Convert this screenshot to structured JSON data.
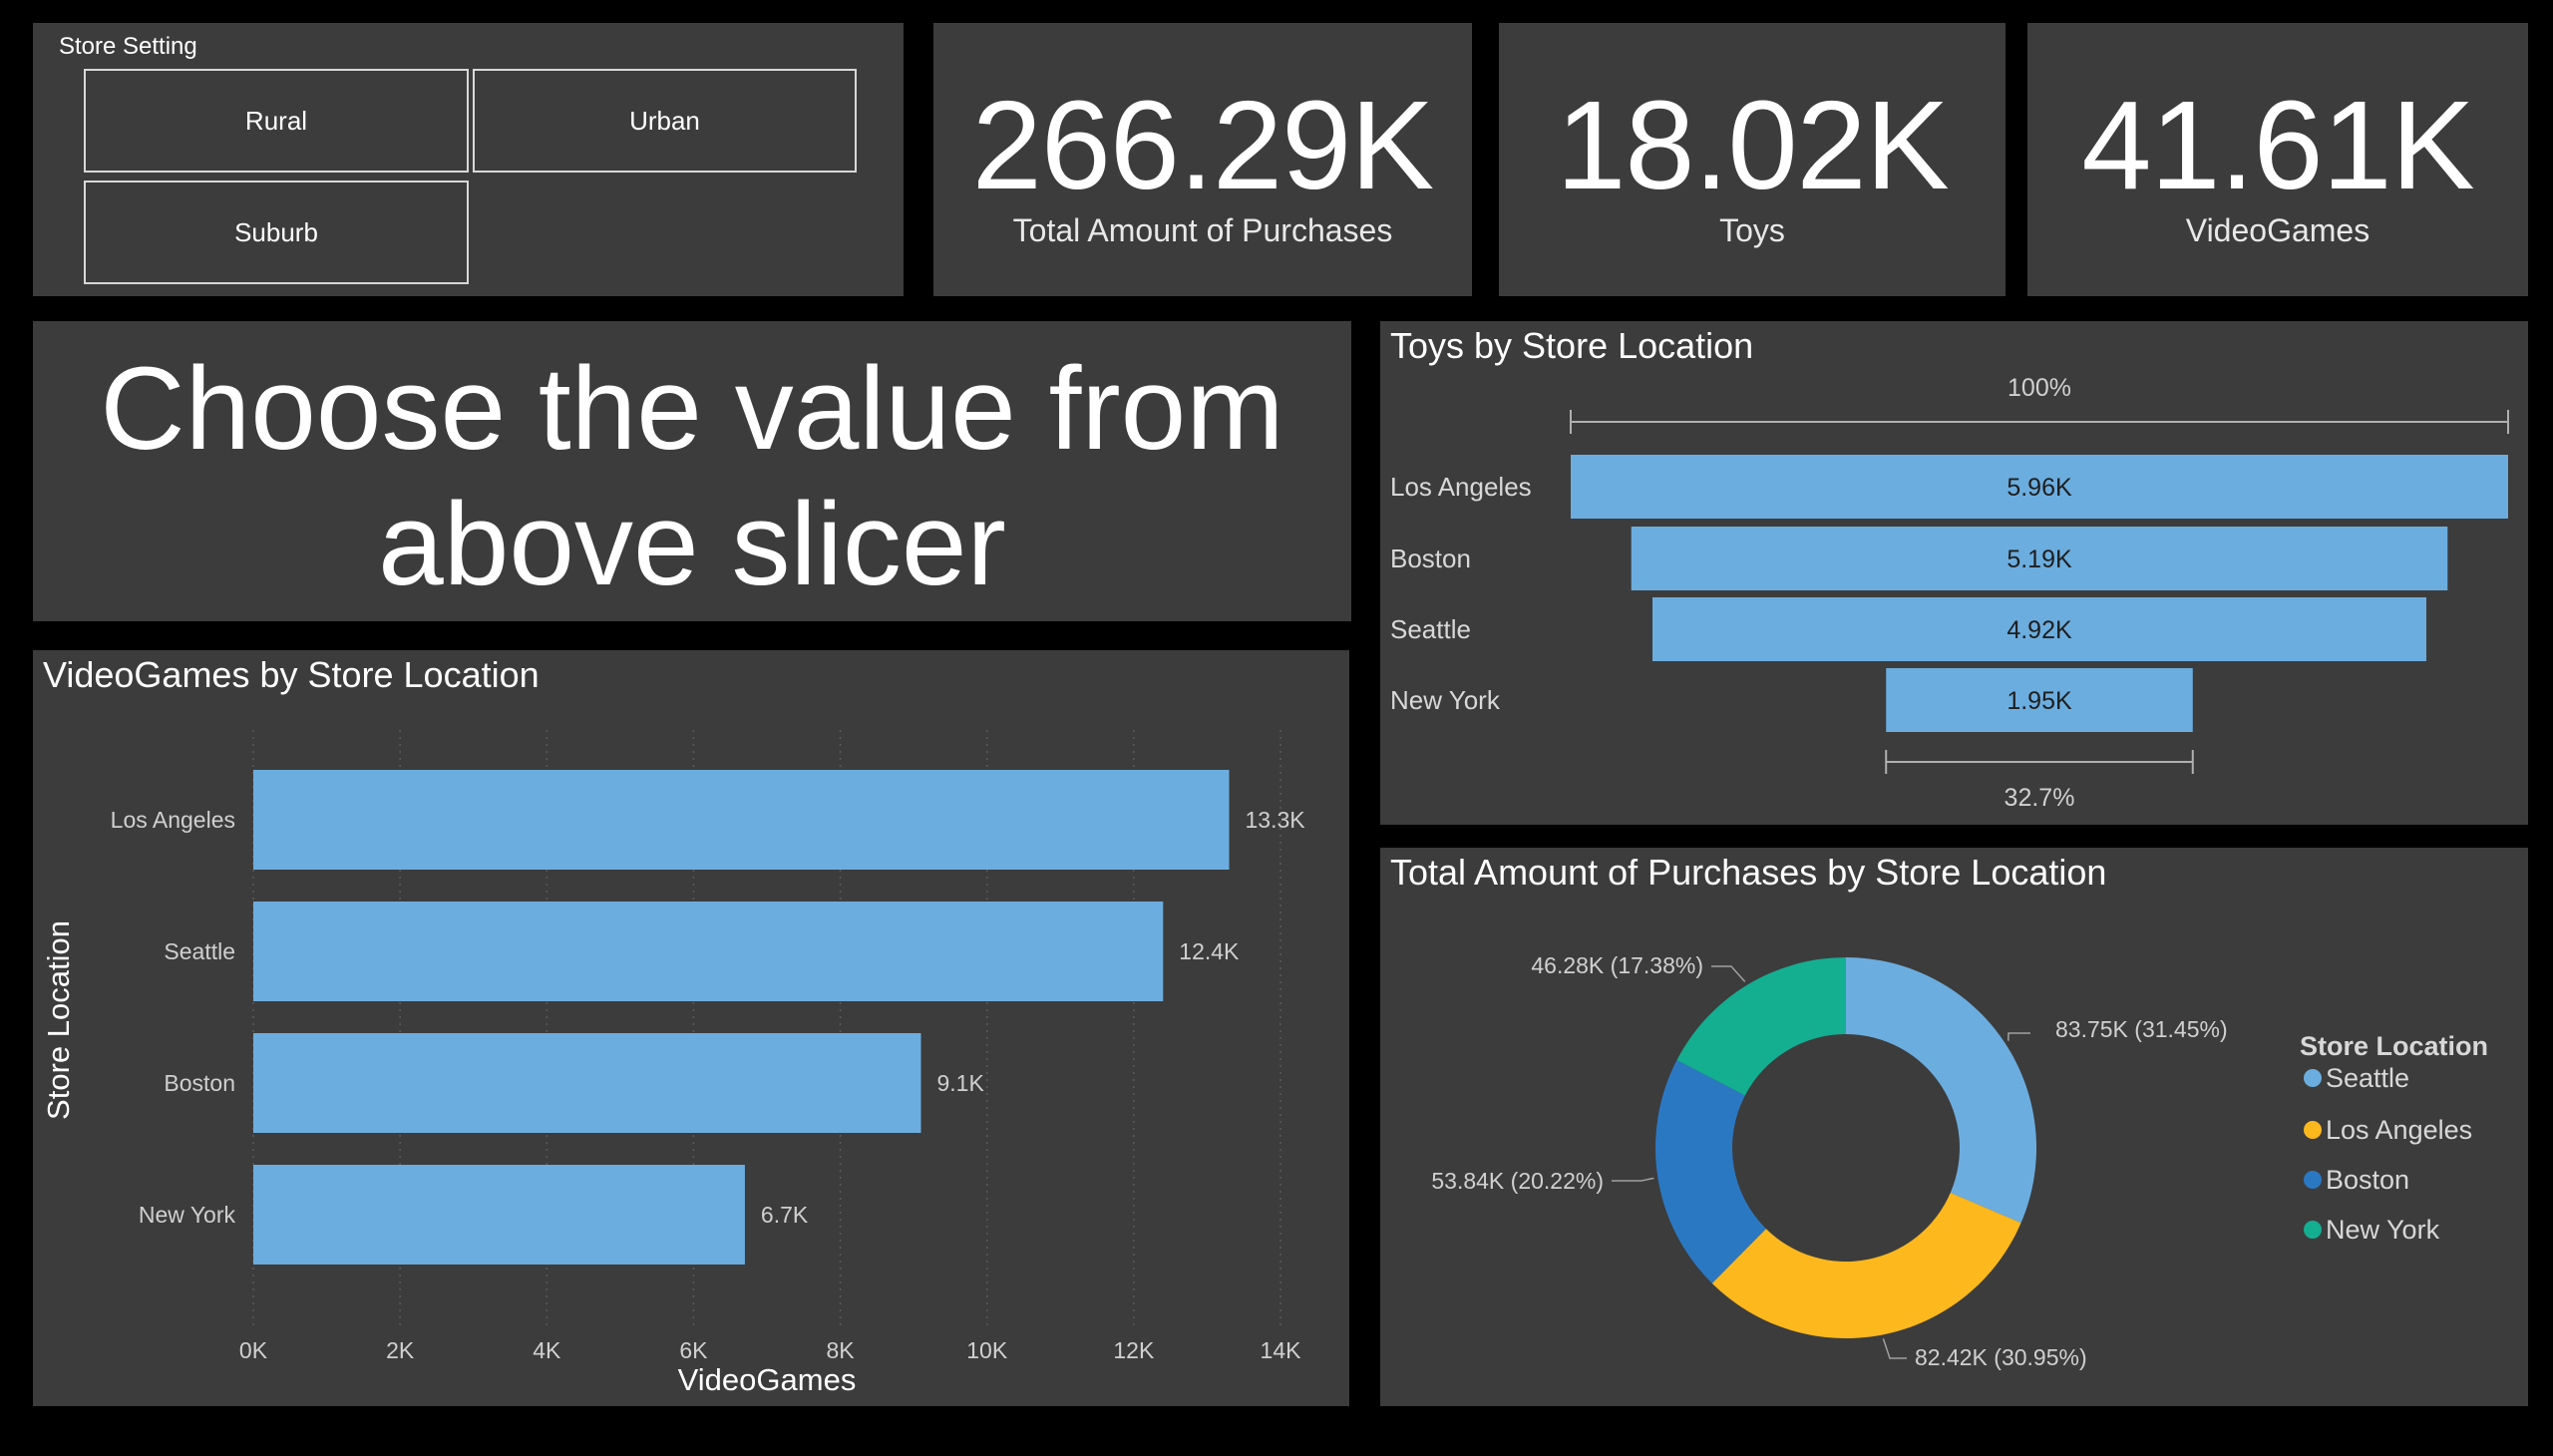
{
  "slicer": {
    "title": "Store Setting",
    "options": [
      "Rural",
      "Urban",
      "Suburb"
    ]
  },
  "kpis": [
    {
      "value": "266.29K",
      "label": "Total Amount of Purchases"
    },
    {
      "value": "18.02K",
      "label": "Toys"
    },
    {
      "value": "41.61K",
      "label": "VideoGames"
    }
  ],
  "instruction": {
    "line1": "Choose the value from",
    "line2": "above slicer"
  },
  "colors": {
    "background": "#000000",
    "panel": "#3c3c3c",
    "bar": "#6caddf",
    "seattle": "#6caddf",
    "los_angeles": "#fdb81e",
    "boston": "#2b78c2",
    "new_york": "#14ae91"
  },
  "chart_data": [
    {
      "type": "bar",
      "orientation": "horizontal",
      "title": "VideoGames by Store Location",
      "xlabel": "VideoGames",
      "ylabel": "Store Location",
      "categories": [
        "Los Angeles",
        "Seattle",
        "Boston",
        "New York"
      ],
      "values": [
        13300,
        12400,
        9100,
        6700
      ],
      "data_labels": [
        "13.3K",
        "12.4K",
        "9.1K",
        "6.7K"
      ],
      "xlim": [
        0,
        14000
      ],
      "x_ticks": [
        0,
        2000,
        4000,
        6000,
        8000,
        10000,
        12000,
        14000
      ],
      "x_tick_labels": [
        "0K",
        "2K",
        "4K",
        "6K",
        "8K",
        "10K",
        "12K",
        "14K"
      ],
      "grid": true
    },
    {
      "type": "funnel",
      "title": "Toys by Store Location",
      "categories": [
        "Los Angeles",
        "Boston",
        "Seattle",
        "New York"
      ],
      "values": [
        5960,
        5190,
        4920,
        1950
      ],
      "data_labels": [
        "5.96K",
        "5.19K",
        "4.92K",
        "1.95K"
      ],
      "top_label": "100%",
      "bottom_label": "32.7%"
    },
    {
      "type": "pie",
      "variant": "donut",
      "title": "Total Amount of Purchases by Store Location",
      "legend_title": "Store Location",
      "legend_position": "right",
      "categories": [
        "Seattle",
        "Los Angeles",
        "Boston",
        "New York"
      ],
      "values": [
        83750,
        82420,
        53840,
        46280
      ],
      "data_labels": [
        "83.75K (31.45%)",
        "82.42K (30.95%)",
        "53.84K (20.22%)",
        "46.28K (17.38%)"
      ],
      "colors": [
        "#6caddf",
        "#fdb81e",
        "#2b78c2",
        "#14ae91"
      ]
    }
  ]
}
